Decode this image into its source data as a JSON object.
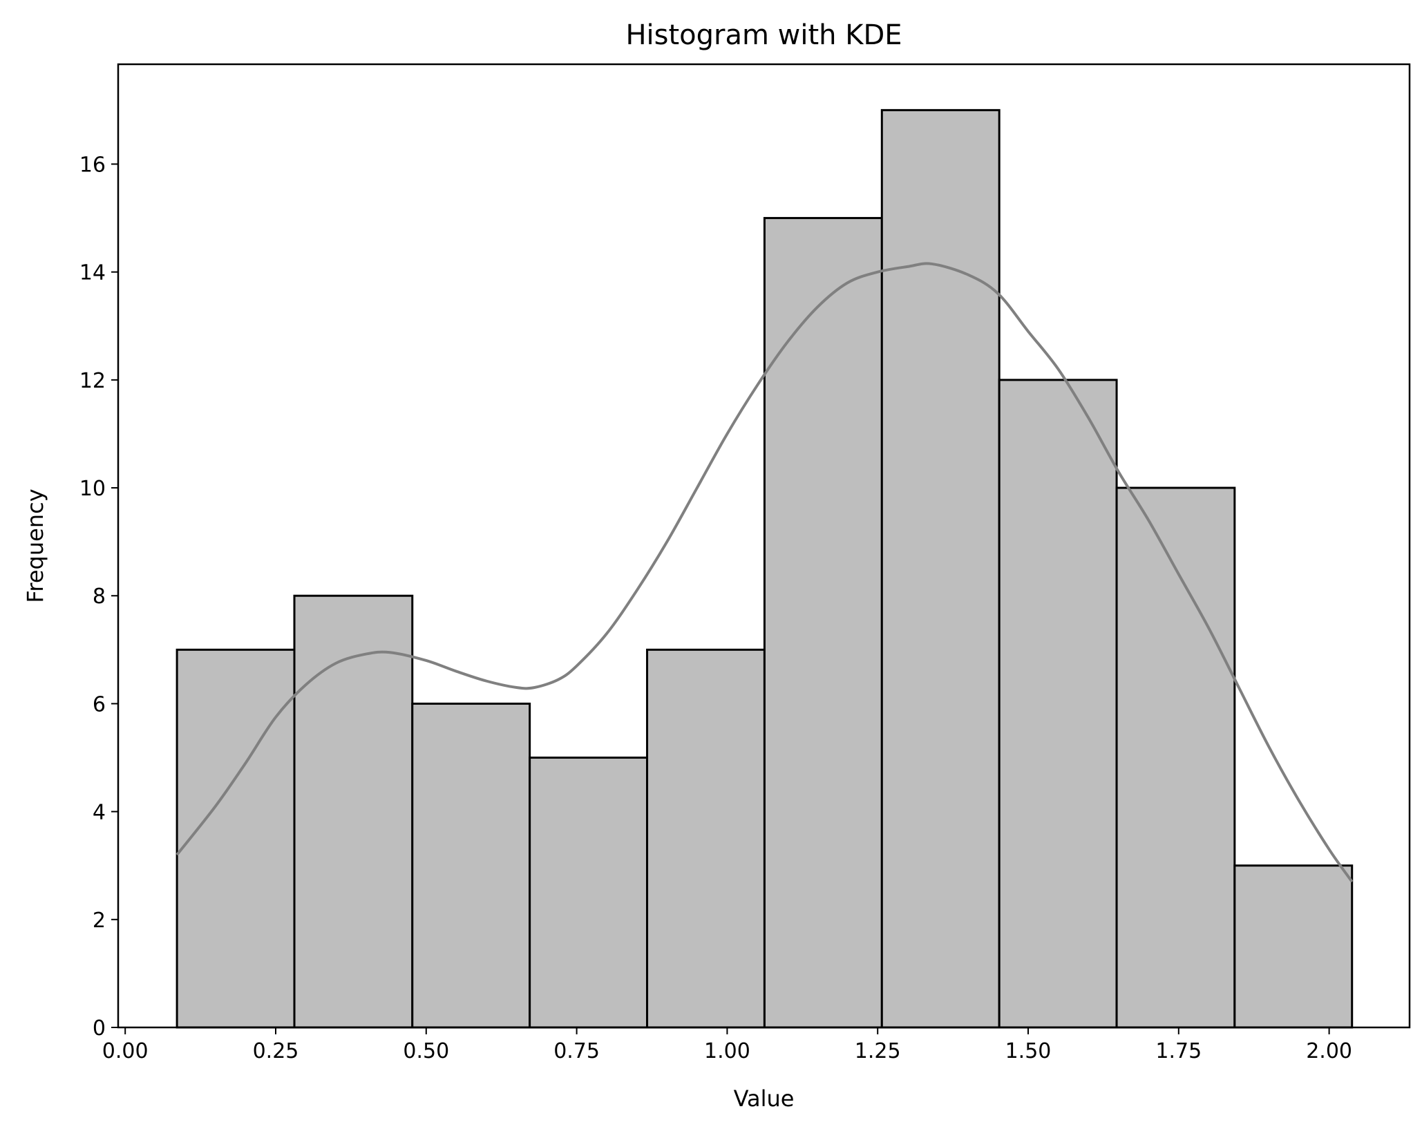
{
  "chart_data": {
    "type": "bar",
    "subtype": "histogram",
    "title": "Histogram with KDE",
    "xlabel": "Value",
    "ylabel": "Frequency",
    "xlim": [
      -0.0117,
      2.1336
    ],
    "ylim": [
      0,
      17.85
    ],
    "xticks": [
      0.0,
      0.25,
      0.5,
      0.75,
      1.0,
      1.25,
      1.5,
      1.75,
      2.0
    ],
    "xtick_labels": [
      "0.00",
      "0.25",
      "0.50",
      "0.75",
      "1.00",
      "1.25",
      "1.50",
      "1.75",
      "2.00"
    ],
    "yticks": [
      0,
      2,
      4,
      6,
      8,
      10,
      12,
      14,
      16
    ],
    "ytick_labels": [
      "0",
      "2",
      "4",
      "6",
      "8",
      "10",
      "12",
      "14",
      "16"
    ],
    "grid": false,
    "bins": [
      {
        "x0": 0.086,
        "x1": 0.281,
        "count": 7
      },
      {
        "x0": 0.281,
        "x1": 0.477,
        "count": 8
      },
      {
        "x0": 0.477,
        "x1": 0.672,
        "count": 6
      },
      {
        "x0": 0.672,
        "x1": 0.867,
        "count": 5
      },
      {
        "x0": 0.867,
        "x1": 1.062,
        "count": 7
      },
      {
        "x0": 1.062,
        "x1": 1.257,
        "count": 15
      },
      {
        "x0": 1.257,
        "x1": 1.452,
        "count": 17
      },
      {
        "x0": 1.452,
        "x1": 1.647,
        "count": 12
      },
      {
        "x0": 1.647,
        "x1": 1.843,
        "count": 10
      },
      {
        "x0": 1.843,
        "x1": 2.038,
        "count": 3
      }
    ],
    "kde": {
      "x": [
        0.086,
        0.15,
        0.2,
        0.25,
        0.3,
        0.35,
        0.4,
        0.44,
        0.5,
        0.55,
        0.6,
        0.65,
        0.68,
        0.72,
        0.75,
        0.8,
        0.85,
        0.9,
        0.95,
        1.0,
        1.05,
        1.1,
        1.15,
        1.2,
        1.25,
        1.3,
        1.34,
        1.4,
        1.45,
        1.5,
        1.55,
        1.6,
        1.65,
        1.7,
        1.75,
        1.8,
        1.85,
        1.9,
        1.95,
        2.0,
        2.038
      ],
      "y": [
        3.2,
        4.1,
        4.9,
        5.75,
        6.35,
        6.75,
        6.92,
        6.95,
        6.8,
        6.6,
        6.42,
        6.3,
        6.3,
        6.45,
        6.7,
        7.3,
        8.1,
        9.0,
        10.0,
        11.0,
        11.9,
        12.7,
        13.35,
        13.8,
        14.0,
        14.1,
        14.15,
        13.95,
        13.6,
        12.9,
        12.2,
        11.3,
        10.3,
        9.4,
        8.4,
        7.4,
        6.3,
        5.2,
        4.2,
        3.3,
        2.7
      ]
    },
    "colors": {
      "bar_fill": "#bebebe",
      "bar_edge": "#000000",
      "kde_line": "#808080"
    }
  }
}
